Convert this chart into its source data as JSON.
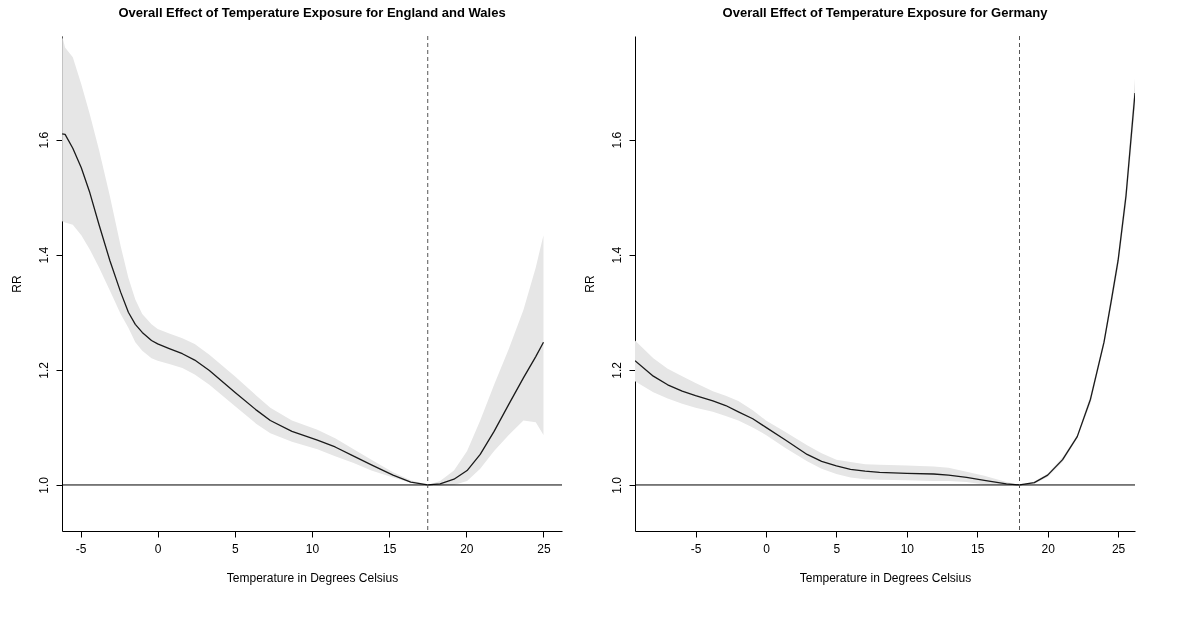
{
  "chart_data": [
    {
      "type": "line",
      "title": "Overall Effect of Temperature Exposure for England and Wales",
      "xlabel": "Temperature in Degrees Celsius",
      "ylabel": "RR",
      "xlim": [
        -6.2,
        26.2
      ],
      "ylim": [
        0.92,
        1.78
      ],
      "xticks": [
        -5,
        0,
        5,
        10,
        15,
        20,
        25
      ],
      "yticks": [
        {
          "value": 1,
          "label": "1.0"
        },
        {
          "value": 1.2,
          "label": "1.2"
        },
        {
          "value": 1.4,
          "label": "1.4"
        },
        {
          "value": 1.6,
          "label": "1.6"
        }
      ],
      "line_style": "solid",
      "ref_lines": [
        {
          "axis": "y",
          "value": 1,
          "line_style": "solid"
        },
        {
          "axis": "x",
          "value": 17.5,
          "line_style": "dashed"
        }
      ],
      "series": [
        {
          "color": "#1a1a1a",
          "x": [
            -6.19,
            -6.0,
            -5.5,
            -4.95,
            -4.4,
            -3.8,
            -3.1,
            -2.4,
            -1.9,
            -1.45,
            -1.0,
            -0.4,
            0,
            0.75,
            1.6,
            2.4,
            3.35,
            5.0,
            6.4,
            7.3,
            8.7,
            10.35,
            11.5,
            12.7,
            13.85,
            15.25,
            16.4,
            17.5,
            18.3,
            19.2,
            20.05,
            20.9,
            21.8,
            22.75,
            23.7,
            24.5,
            25.0
          ],
          "values": [
            1.61,
            1.609,
            1.585,
            1.551,
            1.508,
            1.452,
            1.39,
            1.335,
            1.3,
            1.279,
            1.265,
            1.251,
            1.245,
            1.237,
            1.228,
            1.217,
            1.199,
            1.161,
            1.13,
            1.112,
            1.093,
            1.078,
            1.066,
            1.05,
            1.035,
            1.017,
            1.005,
            1.0,
            1.002,
            1.01,
            1.025,
            1.053,
            1.093,
            1.14,
            1.186,
            1.223,
            1.248
          ],
          "upper": [
            1.78,
            1.76,
            1.743,
            1.696,
            1.644,
            1.582,
            1.502,
            1.415,
            1.36,
            1.322,
            1.297,
            1.279,
            1.271,
            1.263,
            1.255,
            1.245,
            1.226,
            1.189,
            1.155,
            1.134,
            1.112,
            1.096,
            1.081,
            1.062,
            1.044,
            1.022,
            1.008,
            1.0,
            1.007,
            1.025,
            1.059,
            1.112,
            1.174,
            1.236,
            1.304,
            1.378,
            1.434
          ],
          "lower": [
            1.458,
            1.456,
            1.452,
            1.434,
            1.409,
            1.378,
            1.338,
            1.297,
            1.273,
            1.248,
            1.233,
            1.22,
            1.216,
            1.21,
            1.203,
            1.192,
            1.174,
            1.137,
            1.106,
            1.09,
            1.075,
            1.062,
            1.05,
            1.038,
            1.025,
            1.013,
            1.004,
            1.0,
            0.999,
            1.0,
            1.007,
            1.028,
            1.059,
            1.087,
            1.112,
            1.109,
            1.087
          ]
        }
      ]
    },
    {
      "type": "line",
      "title": "Overall Effect of Temperature Exposure for Germany",
      "xlabel": "Temperature in Degrees Celsius",
      "ylabel": "RR",
      "xlim": [
        -9.3,
        26.2
      ],
      "ylim": [
        0.92,
        1.78
      ],
      "xticks": [
        -5,
        0,
        5,
        10,
        15,
        20,
        25
      ],
      "yticks": [
        {
          "value": 1,
          "label": "1.0"
        },
        {
          "value": 1.2,
          "label": "1.2"
        },
        {
          "value": 1.4,
          "label": "1.4"
        },
        {
          "value": 1.6,
          "label": "1.6"
        }
      ],
      "line_style": "solid",
      "ref_lines": [
        {
          "axis": "y",
          "value": 1,
          "line_style": "solid"
        },
        {
          "axis": "x",
          "value": 18,
          "line_style": "dashed"
        }
      ],
      "series": [
        {
          "color": "#1a1a1a",
          "x": [
            -9.3,
            -8.0,
            -6.98,
            -5.95,
            -5,
            -3.77,
            -2.86,
            -1.96,
            -0.94,
            0,
            1.38,
            2.92,
            3.95,
            5.0,
            6.0,
            7.04,
            8.07,
            10.0,
            11.9,
            12.96,
            14.24,
            15.5,
            17.07,
            18.0,
            19.05,
            20.0,
            21.06,
            22.1,
            23.04,
            24.0,
            24.53,
            25.0,
            25.56,
            26.2
          ],
          "values": [
            1.216,
            1.189,
            1.174,
            1.163,
            1.155,
            1.146,
            1.138,
            1.127,
            1.115,
            1.1,
            1.078,
            1.053,
            1.041,
            1.033,
            1.027,
            1.024,
            1.022,
            1.02,
            1.019,
            1.017,
            1.013,
            1.008,
            1.002,
            1.0,
            1.004,
            1.017,
            1.044,
            1.084,
            1.149,
            1.248,
            1.322,
            1.39,
            1.502,
            1.681
          ],
          "lower": [
            1.18,
            1.161,
            1.15,
            1.141,
            1.134,
            1.127,
            1.12,
            1.112,
            1.1,
            1.087,
            1.064,
            1.041,
            1.028,
            1.019,
            1.013,
            1.01,
            1.009,
            1.008,
            1.007,
            1.007,
            1.005,
            1.001,
            1.0,
            1.0,
            1.002,
            1.014,
            1.04,
            1.081,
            1.142,
            1.242,
            1.312,
            1.378,
            1.485,
            1.656
          ],
          "upper": [
            1.251,
            1.22,
            1.202,
            1.189,
            1.177,
            1.163,
            1.155,
            1.146,
            1.13,
            1.112,
            1.092,
            1.069,
            1.055,
            1.044,
            1.04,
            1.036,
            1.035,
            1.034,
            1.032,
            1.03,
            1.023,
            1.016,
            1.005,
            1.0,
            1.006,
            1.02,
            1.048,
            1.087,
            1.156,
            1.254,
            1.332,
            1.4,
            1.518,
            1.706
          ]
        }
      ]
    }
  ]
}
